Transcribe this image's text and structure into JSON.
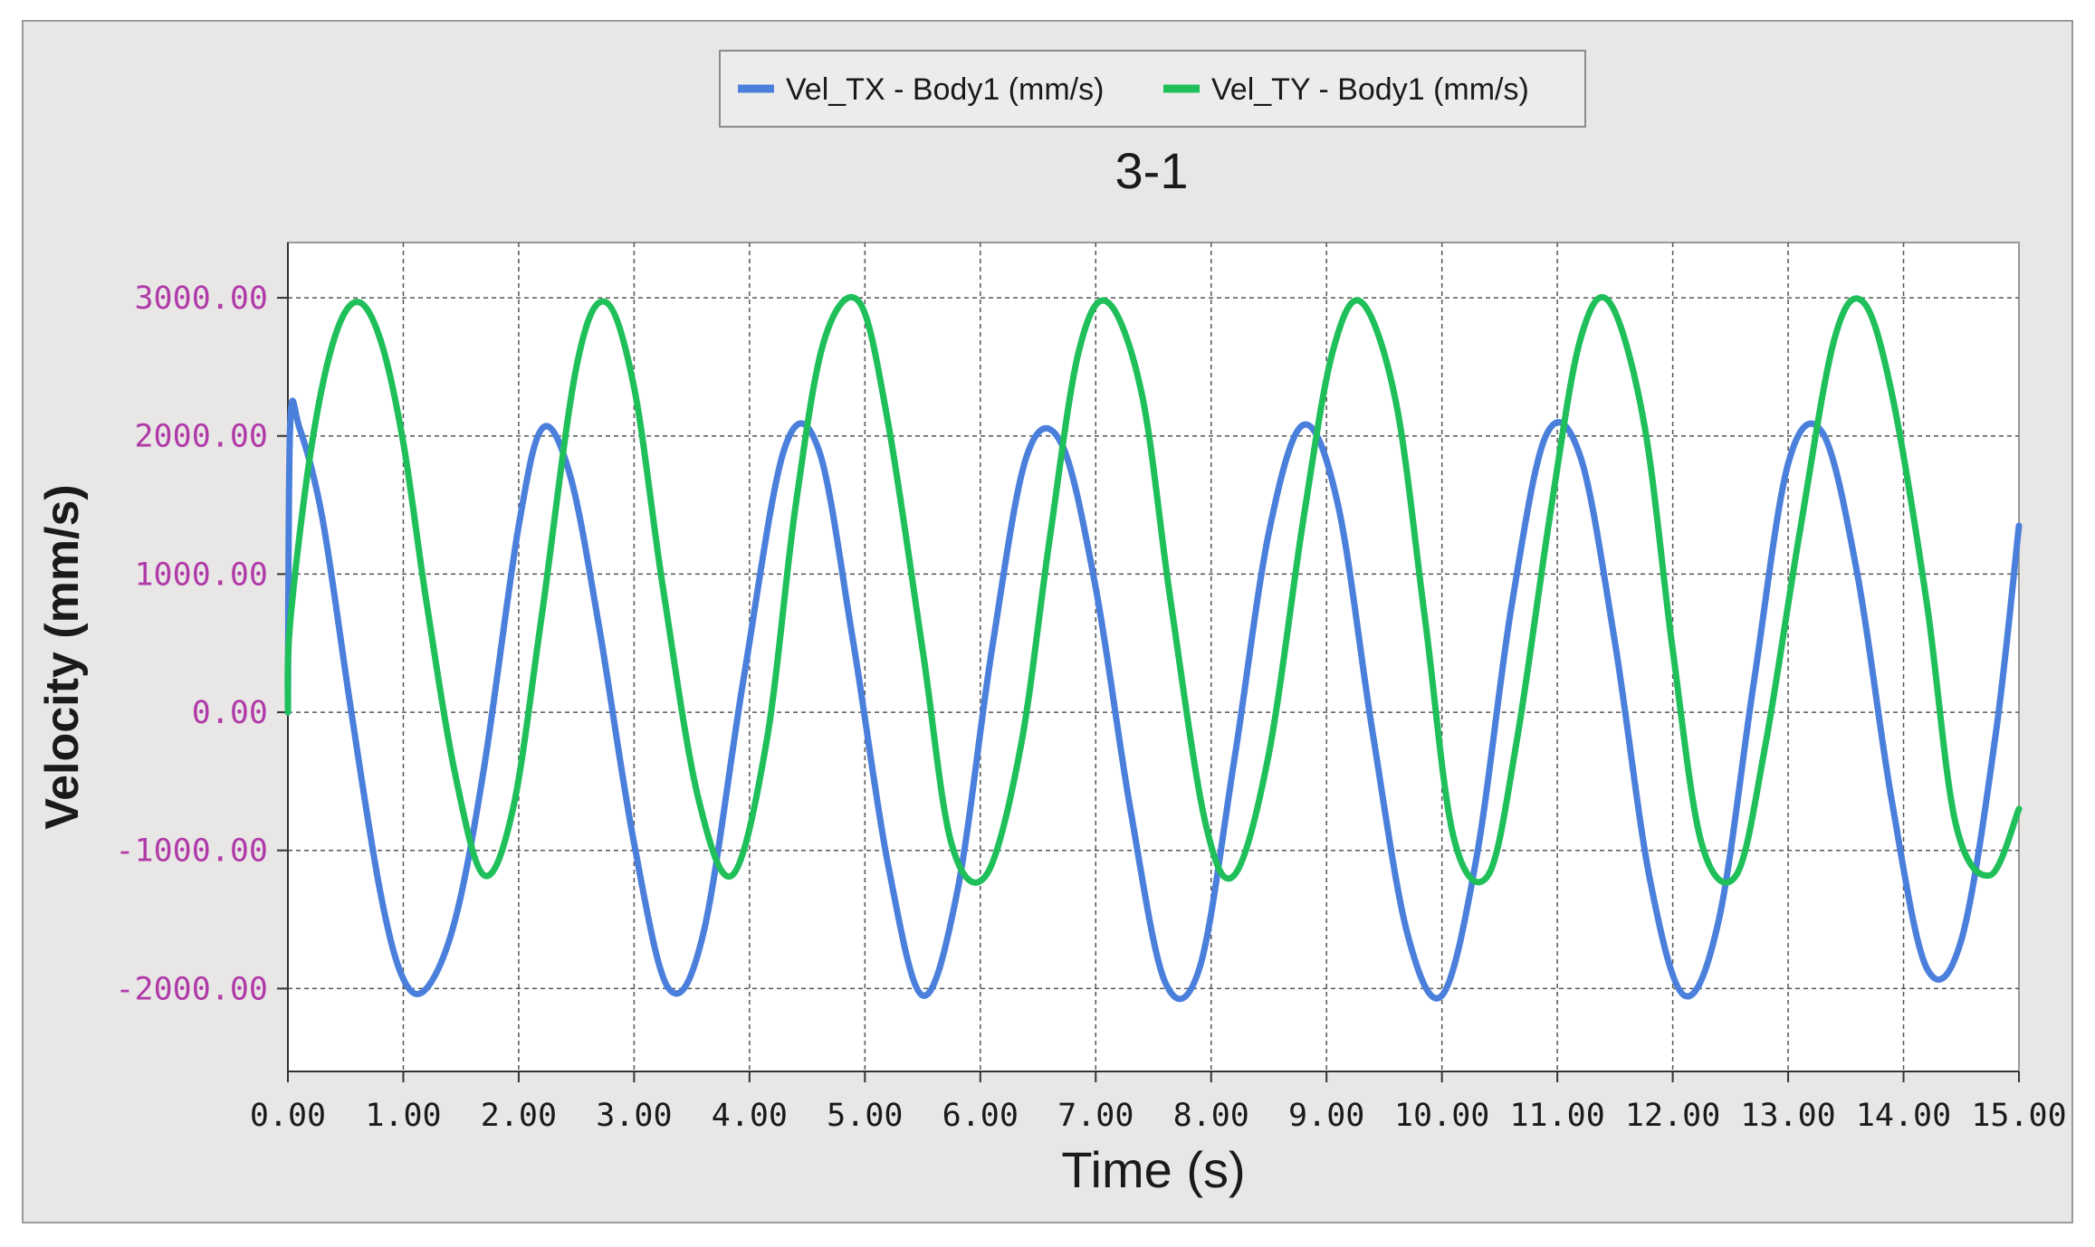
{
  "chart_data": {
    "type": "line",
    "title": "3-1",
    "xlabel": "Time (s)",
    "ylabel": "Velocity (mm/s)",
    "xlim": [
      0,
      15
    ],
    "ylim": [
      -2600,
      3400
    ],
    "grid": true,
    "legend_position": "top-center",
    "x_ticks": [
      0,
      1,
      2,
      3,
      4,
      5,
      6,
      7,
      8,
      9,
      10,
      11,
      12,
      13,
      14,
      15
    ],
    "x_tick_labels": [
      "0.00",
      "1.00",
      "2.00",
      "3.00",
      "4.00",
      "5.00",
      "6.00",
      "7.00",
      "8.00",
      "9.00",
      "10.00",
      "11.00",
      "12.00",
      "13.00",
      "14.00",
      "15.00"
    ],
    "y_ticks": [
      3000,
      2000,
      1000,
      0,
      -1000,
      -2000
    ],
    "y_tick_labels": [
      "3000.00",
      "2000.00",
      "1000.00",
      "0.00",
      "-1000.00",
      "-2000.00"
    ],
    "series": [
      {
        "name": "Vel_TX - Body1 (mm/s)",
        "color": "#4a7fdc",
        "x": [
          0.0,
          0.02,
          0.1,
          0.3,
          0.55,
          0.8,
          1.0,
          1.2,
          1.45,
          1.7,
          2.0,
          2.21,
          2.45,
          2.7,
          3.0,
          3.3,
          3.6,
          3.95,
          4.3,
          4.6,
          4.9,
          5.2,
          5.5,
          5.8,
          6.1,
          6.4,
          6.7,
          7.0,
          7.3,
          7.6,
          7.9,
          8.2,
          8.5,
          8.8,
          9.1,
          9.4,
          9.7,
          10.0,
          10.3,
          10.6,
          10.9,
          11.2,
          11.5,
          11.8,
          12.1,
          12.4,
          12.7,
          13.0,
          13.3,
          13.6,
          13.9,
          14.2,
          14.5,
          14.8,
          15.0
        ],
        "y": [
          0,
          2080,
          2060,
          1400,
          0,
          -1300,
          -1930,
          -2000,
          -1500,
          -400,
          1350,
          2060,
          1700,
          600,
          -950,
          -2000,
          -1600,
          250,
          1900,
          1900,
          500,
          -1100,
          -2050,
          -1300,
          450,
          1850,
          1950,
          900,
          -700,
          -1950,
          -1850,
          -350,
          1300,
          2080,
          1500,
          -150,
          -1600,
          -2050,
          -1050,
          750,
          2000,
          1850,
          500,
          -1200,
          -2050,
          -1500,
          200,
          1800,
          2020,
          1000,
          -650,
          -1850,
          -1650,
          -150,
          1350
        ]
      },
      {
        "name": "Vel_TY - Body1 (mm/s)",
        "color": "#1fbf5a",
        "x": [
          0.0,
          0.02,
          0.2,
          0.4,
          0.6,
          0.8,
          1.0,
          1.2,
          1.45,
          1.7,
          1.95,
          2.2,
          2.5,
          2.75,
          3.0,
          3.25,
          3.55,
          3.85,
          4.15,
          4.4,
          4.65,
          4.95,
          5.2,
          5.5,
          5.75,
          6.05,
          6.35,
          6.6,
          6.85,
          7.1,
          7.4,
          7.65,
          7.95,
          8.2,
          8.5,
          8.8,
          9.05,
          9.3,
          9.6,
          9.85,
          10.1,
          10.4,
          10.65,
          10.95,
          11.2,
          11.45,
          11.75,
          12.0,
          12.25,
          12.55,
          12.8,
          13.1,
          13.4,
          13.65,
          13.9,
          14.2,
          14.45,
          14.75,
          15.0
        ],
        "y": [
          0,
          650,
          1900,
          2700,
          2970,
          2700,
          1950,
          800,
          -450,
          -1180,
          -700,
          700,
          2500,
          2970,
          2350,
          900,
          -600,
          -1180,
          -200,
          1500,
          2700,
          2970,
          2100,
          450,
          -950,
          -1180,
          -250,
          1250,
          2600,
          2970,
          2300,
          800,
          -800,
          -1180,
          -300,
          1400,
          2600,
          2970,
          2250,
          700,
          -900,
          -1180,
          -200,
          1500,
          2700,
          2970,
          2100,
          450,
          -950,
          -1180,
          -250,
          1300,
          2700,
          2970,
          2300,
          800,
          -800,
          -1180,
          -700
        ]
      }
    ]
  }
}
